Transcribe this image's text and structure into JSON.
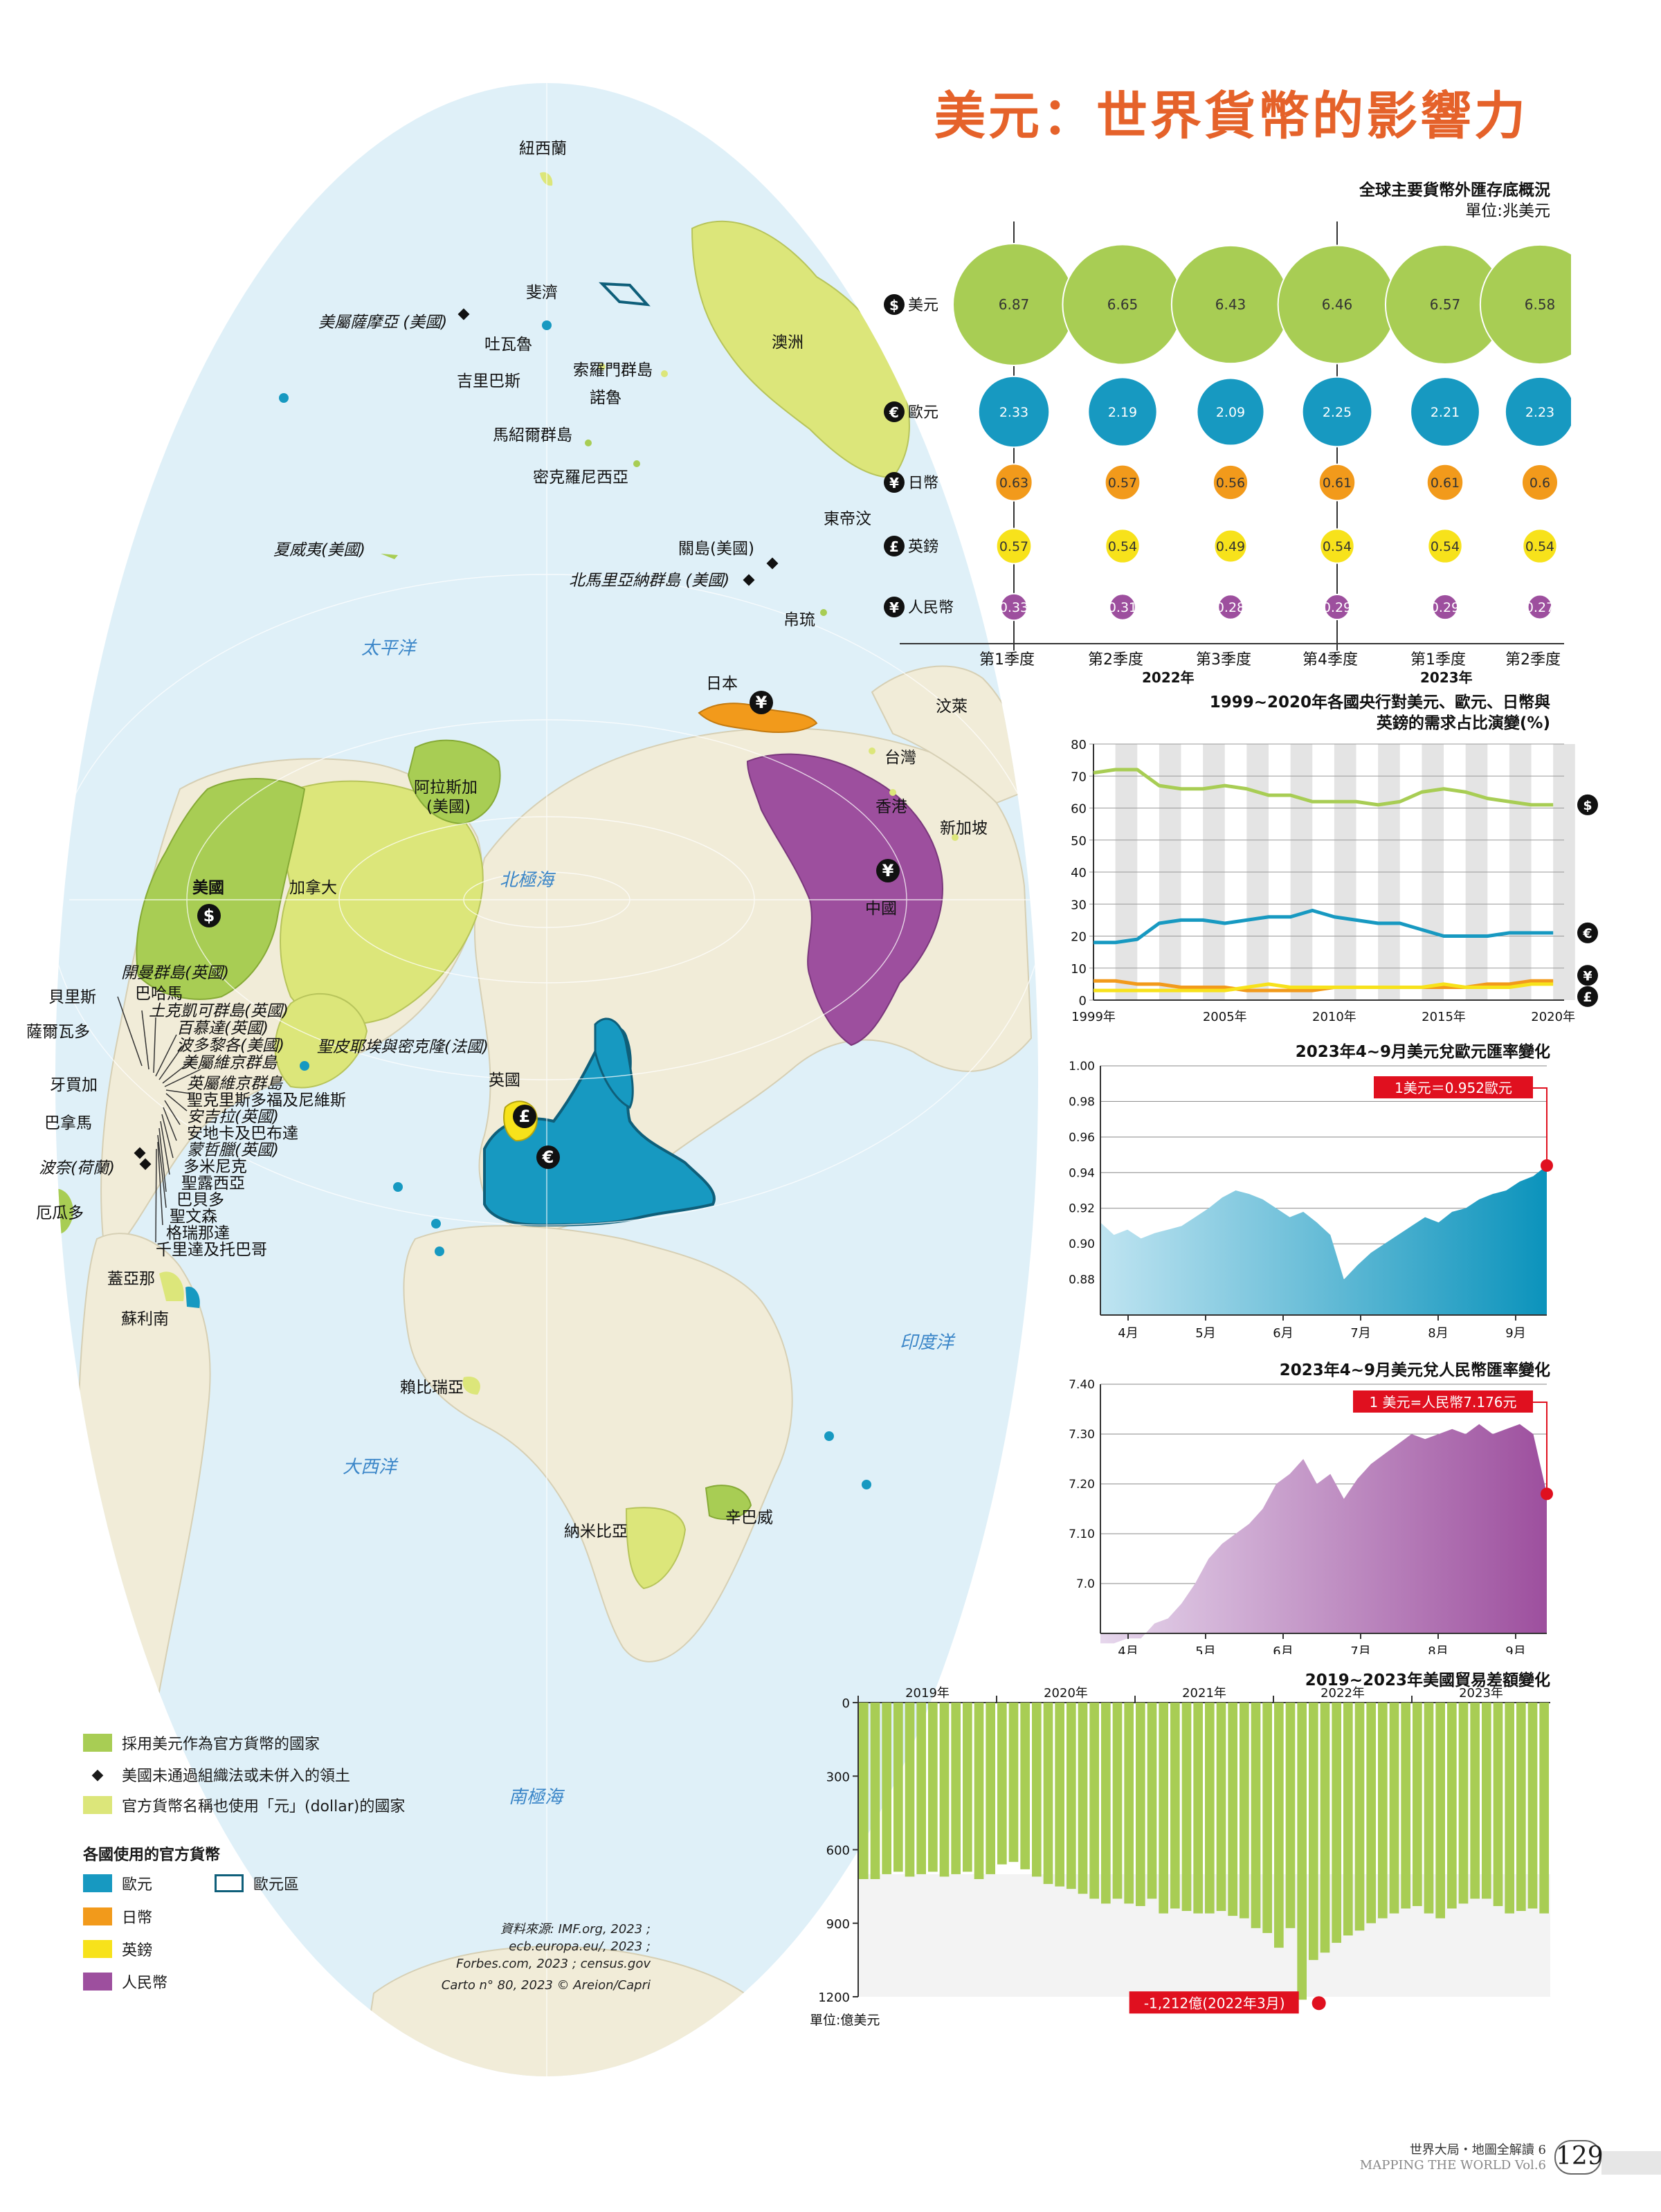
{
  "title": "美元：世界貨幣的影響力",
  "colors": {
    "ocean": "#dff0f8",
    "land": "#f1ecd8",
    "usd_official": "#a8cd54",
    "dollar_named": "#dce67a",
    "euro": "#1799c1",
    "yen": "#f29a1b",
    "pound": "#f7e21b",
    "rmb": "#9d4f9e",
    "accent_title": "#e5622a",
    "highlight_red": "#e0101f"
  },
  "map": {
    "labels": {
      "nz": "紐西蘭",
      "fiji": "斐濟",
      "samoa": "美屬薩摩亞 (美國)",
      "tuvalu": "吐瓦魯",
      "kiribati": "吉里巴斯",
      "solomon": "索羅門群島",
      "nauru": "諾魯",
      "australia": "澳洲",
      "marshall": "馬紹爾群島",
      "micronesia": "密克羅尼西亞",
      "hawaii": "夏威夷(美國)",
      "east_timor": "東帝汶",
      "guam": "關島(美國)",
      "nmariana": "北馬里亞納群島 (美國)",
      "palau": "帛琉",
      "pacific": "太平洋",
      "japan": "日本",
      "brunei": "汶萊",
      "taiwan": "台灣",
      "hongkong": "香港",
      "singapore": "新加坡",
      "alaska": "阿拉斯加\n(美國)",
      "usa": "美國",
      "canada": "加拿大",
      "arctic": "北極海",
      "china": "中國",
      "bahamas_uk": "開曼群島(英國)",
      "belize": "貝里斯",
      "bahamas": "巴哈馬",
      "salvador": "薩爾瓦多",
      "turks": "土克凱可群島(英國)",
      "bermuda": "百慕達(英國)",
      "puerto": "波多黎各(美國)",
      "spm": "聖皮耶埃與密克隆(法國)",
      "vi_us": "美屬維京群島",
      "jamaica": "牙買加",
      "vi_uk": "英屬維京群島",
      "skn": "聖克里斯多福及尼維斯",
      "anguilla": "安吉拉(英國)",
      "panama": "巴拿馬",
      "antigua": "安地卡及巴布達",
      "montserrat": "蒙哲臘(英國)",
      "bonaire": "波奈(荷蘭)",
      "dominica": "多米尼克",
      "st_lucia": "聖露西亞",
      "barbados": "巴貝多",
      "svg": "聖文森",
      "ecuador": "厄瓜多",
      "grenada": "格瑞那達",
      "tt": "千里達及托巴哥",
      "guyana": "蓋亞那",
      "suriname": "蘇利南",
      "uk": "英國",
      "liberia": "賴比瑞亞",
      "indian": "印度洋",
      "atlantic": "大西洋",
      "zimbabwe": "辛巴威",
      "namibia": "納米比亞",
      "southern": "南極海"
    }
  },
  "legend": {
    "usd_official": "採用美元作為官方貨幣的國家",
    "us_territory": "美國未通過組織法或未併入的領土",
    "dollar_named": "官方貨幣名稱也使用「元」(dollar)的國家",
    "heading": "各國使用的官方貨幣",
    "euro": "歐元",
    "eurozone": "歐元區",
    "yen": "日幣",
    "pound": "英鎊",
    "rmb": "人民幣"
  },
  "source": {
    "line1": "資料來源: IMF.org, 2023 ;",
    "line2": "ecb.europa.eu/, 2023 ;",
    "line3": "Forbes.com, 2023 ; census.gov",
    "line4": "Carto n° 80, 2023 © Areion/Capri"
  },
  "reserves": {
    "title": "全球主要貨幣外匯存底概況",
    "unit": "單位:兆美元",
    "currencies": [
      "美元",
      "歐元",
      "日幣",
      "英鎊",
      "人民幣"
    ],
    "symbols": [
      "$",
      "€",
      "¥",
      "£",
      "¥"
    ],
    "quarters": [
      "第1季度",
      "第2季度",
      "第3季度",
      "第4季度",
      "第1季度",
      "第2季度"
    ],
    "years": [
      "2022年",
      "2023年"
    ],
    "values": {
      "美元": [
        "6.87",
        "6.65",
        "6.43",
        "6.46",
        "6.57",
        "6.58"
      ],
      "歐元": [
        "2.33",
        "2.19",
        "2.09",
        "2.25",
        "2.21",
        "2.23"
      ],
      "日幣": [
        "0.63",
        "0.57",
        "0.56",
        "0.61",
        "0.61",
        "0.6"
      ],
      "英鎊": [
        "0.57",
        "0.54",
        "0.49",
        "0.54",
        "0.54",
        "0.54"
      ],
      "人民幣": [
        "0.33",
        "0.31",
        "0.28",
        "0.29",
        "0.29",
        "0.27"
      ]
    }
  },
  "chart_data": [
    {
      "type": "bubble",
      "title": "全球主要貨幣外匯存底概況",
      "unit": "單位:兆美元",
      "categories": [
        "第1季度",
        "第2季度",
        "第3季度",
        "第4季度",
        "第1季度",
        "第2季度"
      ],
      "series": [
        {
          "name": "美元",
          "values": [
            6.87,
            6.65,
            6.43,
            6.46,
            6.57,
            6.58
          ]
        },
        {
          "name": "歐元",
          "values": [
            2.33,
            2.19,
            2.09,
            2.25,
            2.21,
            2.23
          ]
        },
        {
          "name": "日幣",
          "values": [
            0.63,
            0.57,
            0.56,
            0.61,
            0.61,
            0.6
          ]
        },
        {
          "name": "英鎊",
          "values": [
            0.57,
            0.54,
            0.49,
            0.54,
            0.54,
            0.54
          ]
        },
        {
          "name": "人民幣",
          "values": [
            0.33,
            0.31,
            0.28,
            0.29,
            0.29,
            0.27
          ]
        }
      ]
    },
    {
      "type": "line",
      "title": "1999~2020年各國央行對美元、歐元、日幣與英鎊的需求占比演變(%)",
      "x_ticks": [
        "1999年",
        "2005年",
        "2010年",
        "2015年",
        "2020年"
      ],
      "ylim": [
        0,
        80
      ],
      "y_ticks": [
        0,
        10,
        20,
        30,
        40,
        50,
        60,
        70,
        80
      ],
      "x": [
        1999,
        2000,
        2001,
        2002,
        2003,
        2004,
        2005,
        2006,
        2007,
        2008,
        2009,
        2010,
        2011,
        2012,
        2013,
        2014,
        2015,
        2016,
        2017,
        2018,
        2019,
        2020
      ],
      "series": [
        {
          "name": "$",
          "color": "#a8cd54",
          "values": [
            71,
            72,
            72,
            67,
            66,
            66,
            67,
            66,
            64,
            64,
            62,
            62,
            62,
            61,
            62,
            65,
            66,
            65,
            63,
            62,
            61,
            61
          ]
        },
        {
          "name": "€",
          "color": "#1799c1",
          "values": [
            18,
            18,
            19,
            24,
            25,
            25,
            24,
            25,
            26,
            26,
            28,
            26,
            25,
            24,
            24,
            22,
            20,
            20,
            20,
            21,
            21,
            21
          ]
        },
        {
          "name": "¥",
          "color": "#f29a1b",
          "values": [
            6,
            6,
            5,
            5,
            4,
            4,
            4,
            3,
            3,
            3,
            3,
            4,
            4,
            4,
            4,
            4,
            4,
            4,
            5,
            5,
            6,
            6
          ]
        },
        {
          "name": "£",
          "color": "#f7e21b",
          "values": [
            3,
            3,
            3,
            3,
            3,
            3,
            3,
            4,
            5,
            4,
            4,
            4,
            4,
            4,
            4,
            4,
            5,
            4,
            4,
            4,
            5,
            5
          ]
        }
      ]
    },
    {
      "type": "area",
      "title": "2023年4~9月美元兌歐元匯率變化",
      "x_ticks": [
        "4月",
        "5月",
        "6月",
        "7月",
        "8月",
        "9月"
      ],
      "ylim": [
        0.86,
        1.0
      ],
      "y_ticks": [
        "1.00",
        "0.98",
        "0.96",
        "0.94",
        "0.92",
        "0.90",
        "0.88"
      ],
      "annotation": "1美元＝0.952歐元",
      "values": [
        0.912,
        0.905,
        0.908,
        0.903,
        0.906,
        0.908,
        0.91,
        0.915,
        0.92,
        0.926,
        0.93,
        0.928,
        0.925,
        0.92,
        0.915,
        0.918,
        0.912,
        0.905,
        0.88,
        0.888,
        0.895,
        0.9,
        0.905,
        0.91,
        0.915,
        0.912,
        0.918,
        0.92,
        0.925,
        0.928,
        0.93,
        0.935,
        0.938,
        0.944
      ]
    },
    {
      "type": "area",
      "title": "2023年4~9月美元兌人民幣匯率變化",
      "x_ticks": [
        "4月",
        "5月",
        "6月",
        "7月",
        "8月",
        "9月"
      ],
      "ylim": [
        6.9,
        7.4
      ],
      "y_ticks": [
        "7.40",
        "7.30",
        "7.20",
        "7.10",
        "7.0"
      ],
      "annotation": "1 美元=人民幣7.176元",
      "values": [
        6.88,
        6.88,
        6.89,
        6.89,
        6.92,
        6.93,
        6.96,
        7.0,
        7.05,
        7.08,
        7.1,
        7.12,
        7.15,
        7.2,
        7.22,
        7.25,
        7.2,
        7.22,
        7.17,
        7.21,
        7.24,
        7.26,
        7.28,
        7.3,
        7.29,
        7.3,
        7.31,
        7.3,
        7.32,
        7.3,
        7.31,
        7.32,
        7.3,
        7.18
      ]
    },
    {
      "type": "bar",
      "title": "2019~2023年美國貿易差額變化",
      "unit": "單位:億美元",
      "x_ticks": [
        "2019年",
        "2020年",
        "2021年",
        "2022年",
        "2023年"
      ],
      "ylim": [
        0,
        1200
      ],
      "y_ticks": [
        0,
        300,
        600,
        900,
        1200
      ],
      "annotation": "-1,212億(2022年3月)",
      "values": [
        720,
        720,
        700,
        690,
        710,
        700,
        690,
        710,
        700,
        690,
        720,
        700,
        660,
        650,
        680,
        710,
        740,
        750,
        760,
        780,
        800,
        820,
        800,
        820,
        830,
        800,
        860,
        840,
        850,
        860,
        860,
        850,
        870,
        880,
        920,
        940,
        1000,
        920,
        1212,
        1050,
        1020,
        980,
        950,
        930,
        900,
        880,
        860,
        840,
        830,
        860,
        880,
        840,
        820,
        800,
        800,
        830,
        860,
        850,
        840,
        860
      ]
    }
  ],
  "line_chart_title": "1999~2020年各國央行對美元、歐元、日幣與\n英鎊的需求占比演變(%)",
  "eur_chart_title": "2023年4~9月美元兌歐元匯率變化",
  "cny_chart_title": "2023年4~9月美元兌人民幣匯率變化",
  "trade_chart_title": "2019~2023年美國貿易差額變化",
  "footer": {
    "series": "世界大局・地圖全解讀 6",
    "en": "MAPPING THE WORLD Vol.6",
    "page": "129"
  }
}
